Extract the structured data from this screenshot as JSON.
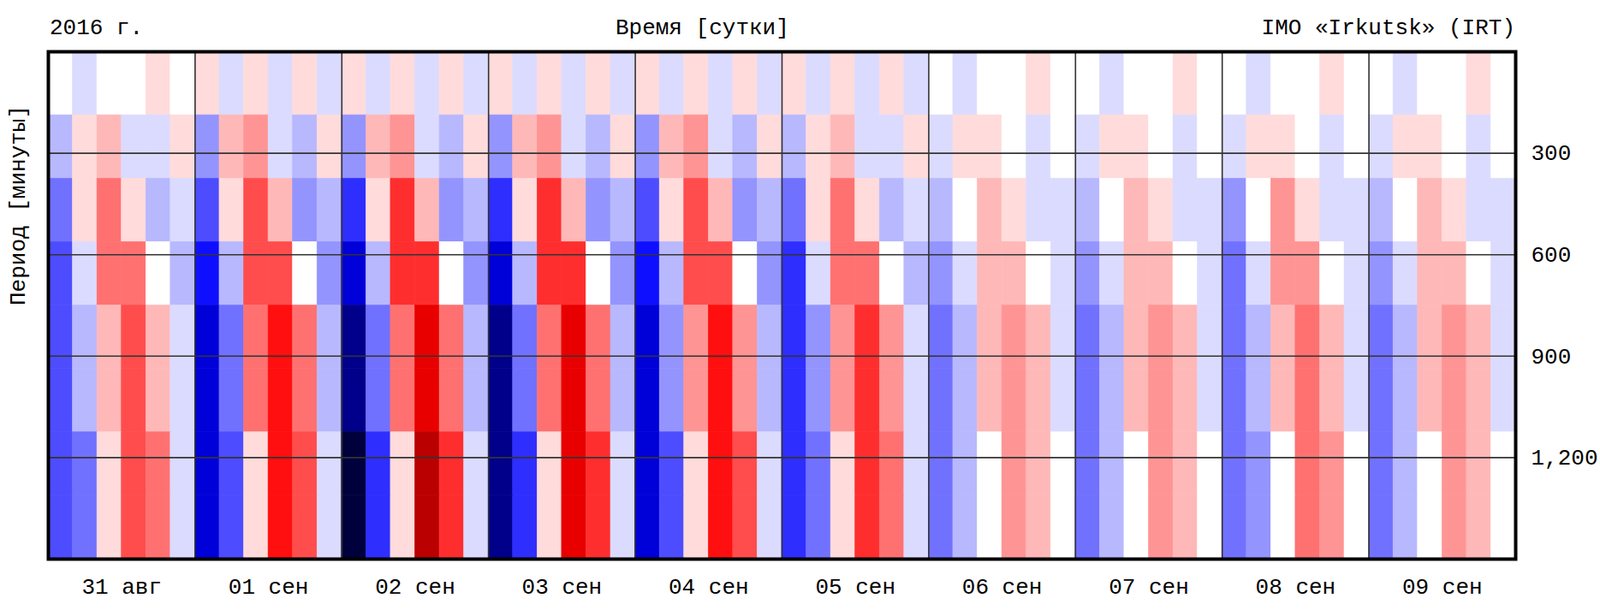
{
  "chart_data": {
    "type": "heatmap",
    "title": "Время [сутки]",
    "year_label": "2016 г.",
    "station": "IMO «Irkutsk» (IRT)",
    "y_label": "Период [минуты]",
    "xlim": [
      0,
      240
    ],
    "xticks": [
      {
        "value": 12,
        "label": "31 авг"
      },
      {
        "value": 36,
        "label": "01 сен"
      },
      {
        "value": 60,
        "label": "02 сен"
      },
      {
        "value": 84,
        "label": "03 сен"
      },
      {
        "value": 108,
        "label": "04 сен"
      },
      {
        "value": 132,
        "label": "05 сен"
      },
      {
        "value": 156,
        "label": "06 сен"
      },
      {
        "value": 180,
        "label": "07 сен"
      },
      {
        "value": 204,
        "label": "08 сен"
      },
      {
        "value": 228,
        "label": "09 сен"
      }
    ],
    "day_boundaries": [
      24,
      48,
      72,
      96,
      120,
      144,
      168,
      192,
      216
    ],
    "ylim": [
      0,
      1500
    ],
    "yticks": [
      300,
      600,
      900,
      1200
    ],
    "grid": true,
    "color_range": [
      -10,
      10
    ],
    "x_edges": [
      0,
      4,
      8,
      12,
      16,
      20,
      24,
      28,
      32,
      36,
      40,
      44,
      48,
      52,
      56,
      60,
      64,
      68,
      72,
      76,
      80,
      84,
      88,
      92,
      96,
      100,
      104,
      108,
      112,
      116,
      120,
      124,
      128,
      132,
      136,
      140,
      144,
      148,
      152,
      156,
      160,
      164,
      168,
      172,
      176,
      180,
      184,
      188,
      192,
      196,
      200,
      204,
      208,
      212,
      216,
      220,
      224,
      228,
      232,
      236,
      240
    ],
    "y_edges": [
      0,
      187.5,
      375,
      562.5,
      750,
      937.5,
      1125,
      1312.5,
      1500
    ],
    "values": [
      [
        0,
        -1,
        0,
        0,
        1,
        0,
        1,
        -1,
        1,
        -1,
        1,
        -1,
        1,
        -1,
        1,
        -1,
        1,
        -1,
        1,
        -1,
        1,
        -1,
        1,
        -1,
        1,
        -1,
        1,
        -1,
        1,
        -1,
        1,
        -1,
        1,
        -1,
        1,
        -1,
        0,
        -1,
        0,
        0,
        1,
        0,
        0,
        -1,
        0,
        0,
        1,
        0,
        0,
        -1,
        0,
        0,
        1,
        0,
        0,
        -1,
        0,
        0,
        1,
        0
      ],
      [
        -2,
        1,
        2,
        -1,
        -1,
        1,
        -3,
        2,
        3,
        -1,
        -2,
        1,
        -3,
        2,
        3,
        -1,
        -2,
        1,
        -3,
        2,
        3,
        -1,
        -2,
        1,
        -3,
        2,
        3,
        -1,
        -2,
        1,
        -2,
        1,
        2,
        -1,
        -1,
        1,
        -1,
        1,
        1,
        0,
        -1,
        0,
        -1,
        1,
        1,
        0,
        -1,
        0,
        -1,
        1,
        1,
        0,
        -1,
        0,
        -1,
        1,
        1,
        0,
        -1,
        0
      ],
      [
        -4,
        1,
        4,
        1,
        -2,
        -1,
        -5,
        1,
        5,
        2,
        -3,
        -2,
        -6,
        1,
        6,
        2,
        -3,
        -2,
        -6,
        1,
        6,
        2,
        -3,
        -2,
        -5,
        1,
        5,
        2,
        -3,
        -2,
        -4,
        1,
        4,
        1,
        -2,
        -1,
        -2,
        0,
        2,
        1,
        -1,
        -1,
        -2,
        0,
        2,
        1,
        -1,
        -1,
        -3,
        0,
        3,
        1,
        -1,
        -1,
        -2,
        0,
        2,
        1,
        -1,
        -1
      ],
      [
        -5,
        -1,
        4,
        4,
        0,
        -2,
        -7,
        -2,
        5,
        5,
        0,
        -3,
        -8,
        -2,
        6,
        6,
        0,
        -3,
        -8,
        -2,
        6,
        6,
        0,
        -3,
        -7,
        -2,
        5,
        5,
        0,
        -3,
        -6,
        -1,
        4,
        4,
        0,
        -2,
        -3,
        -1,
        2,
        2,
        0,
        -1,
        -3,
        -1,
        2,
        2,
        0,
        -1,
        -4,
        -1,
        3,
        3,
        0,
        -1,
        -3,
        -1,
        2,
        2,
        0,
        -1
      ],
      [
        -5,
        -2,
        2,
        5,
        2,
        -1,
        -8,
        -4,
        4,
        7,
        4,
        -2,
        -9,
        -4,
        4,
        8,
        4,
        -2,
        -9,
        -4,
        4,
        8,
        4,
        -2,
        -8,
        -3,
        3,
        7,
        3,
        -2,
        -6,
        -3,
        3,
        6,
        3,
        -1,
        -4,
        -2,
        2,
        3,
        2,
        -1,
        -4,
        -2,
        2,
        3,
        2,
        -1,
        -4,
        -2,
        2,
        4,
        2,
        -1,
        -4,
        -2,
        2,
        3,
        2,
        -1
      ],
      [
        -5,
        -2,
        2,
        5,
        2,
        -1,
        -8,
        -4,
        4,
        7,
        4,
        -2,
        -9,
        -4,
        4,
        8,
        4,
        -2,
        -9,
        -4,
        4,
        8,
        4,
        -2,
        -8,
        -3,
        3,
        7,
        3,
        -2,
        -6,
        -3,
        3,
        6,
        3,
        -1,
        -4,
        -2,
        2,
        3,
        2,
        -1,
        -4,
        -2,
        2,
        3,
        2,
        -1,
        -4,
        -2,
        2,
        4,
        2,
        -1,
        -4,
        -2,
        2,
        3,
        2,
        -1
      ],
      [
        -5,
        -4,
        1,
        5,
        4,
        -1,
        -8,
        -5,
        1,
        7,
        5,
        -1,
        -10,
        -6,
        1,
        9,
        6,
        -1,
        -9,
        -6,
        1,
        8,
        6,
        -1,
        -8,
        -5,
        1,
        7,
        5,
        -1,
        -6,
        -4,
        1,
        6,
        4,
        -1,
        -4,
        -2,
        0,
        3,
        2,
        0,
        -4,
        -2,
        0,
        3,
        2,
        0,
        -4,
        -3,
        0,
        4,
        3,
        0,
        -4,
        -2,
        0,
        3,
        2,
        0
      ],
      [
        -5,
        -4,
        1,
        5,
        4,
        -1,
        -8,
        -5,
        1,
        7,
        5,
        -1,
        -10,
        -6,
        1,
        9,
        6,
        -1,
        -9,
        -6,
        1,
        8,
        6,
        -1,
        -8,
        -5,
        1,
        7,
        5,
        -1,
        -6,
        -4,
        1,
        6,
        4,
        -1,
        -4,
        -2,
        0,
        3,
        2,
        0,
        -4,
        -2,
        0,
        3,
        2,
        0,
        -4,
        -3,
        0,
        4,
        3,
        0,
        -4,
        -2,
        0,
        3,
        2,
        0
      ]
    ]
  }
}
